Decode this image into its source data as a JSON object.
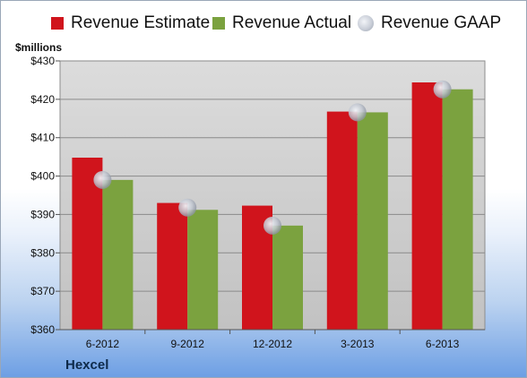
{
  "chart_data": {
    "type": "bar",
    "title": "",
    "ylabel": "$millions",
    "xlabel": "",
    "company": "Hexcel",
    "categories": [
      "6-2012",
      "9-2012",
      "12-2012",
      "3-2013",
      "6-2013"
    ],
    "yticks": [
      "$360",
      "$370",
      "$380",
      "$390",
      "$400",
      "$410",
      "$420",
      "$430"
    ],
    "ylim": [
      360,
      430
    ],
    "grid": true,
    "legend_placement": "top",
    "series": [
      {
        "name": "Revenue Estimate",
        "type": "bar",
        "color": "#d0141c",
        "values": [
          404.8,
          393.0,
          392.3,
          416.8,
          424.4
        ]
      },
      {
        "name": "Revenue Actual",
        "type": "bar",
        "color": "#7ba23f",
        "values": [
          399.0,
          391.2,
          387.1,
          416.6,
          422.6
        ]
      },
      {
        "name": "Revenue GAAP",
        "type": "marker",
        "color": "#c7ccd6",
        "values": [
          399.0,
          391.8,
          387.1,
          416.6,
          422.6
        ]
      }
    ]
  }
}
